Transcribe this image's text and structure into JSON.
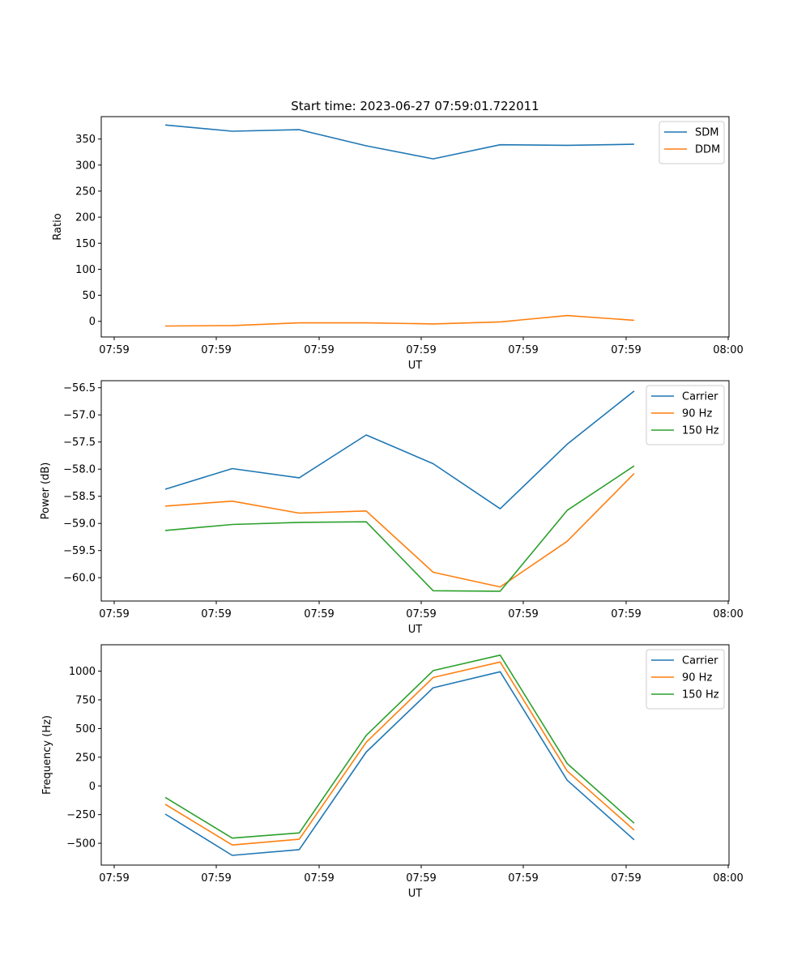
{
  "chart_data": [
    {
      "type": "line",
      "title": "Start time: 2023-06-27 07:59:01.722011",
      "xlabel": "UT",
      "ylabel": "Ratio",
      "x_tick_labels": [
        "07:59",
        "07:59",
        "07:59",
        "07:59",
        "07:59",
        "07:59",
        "07:59"
      ],
      "x_end_tick_label": "08:00",
      "x_sample_index": [
        0,
        1,
        2,
        3,
        4,
        5,
        6,
        7
      ],
      "ylim": [
        -30,
        393
      ],
      "yticks": [
        0,
        50,
        100,
        150,
        200,
        250,
        300,
        350
      ],
      "grid": false,
      "legend_position": "upper right",
      "series": [
        {
          "name": "SDM",
          "color": "#1f77b4",
          "values": [
            377,
            365,
            368,
            337,
            312,
            339,
            338,
            340
          ]
        },
        {
          "name": "DDM",
          "color": "#ff7f0e",
          "values": [
            -9,
            -8,
            -3,
            -3,
            -5,
            -1,
            11,
            2
          ]
        }
      ]
    },
    {
      "type": "line",
      "title": "",
      "xlabel": "UT",
      "ylabel": "Power (dB)",
      "x_tick_labels": [
        "07:59",
        "07:59",
        "07:59",
        "07:59",
        "07:59",
        "07:59",
        "07:59"
      ],
      "x_end_tick_label": "08:00",
      "x_sample_index": [
        0,
        1,
        2,
        3,
        4,
        5,
        6,
        7
      ],
      "ylim": [
        -60.43,
        -56.37
      ],
      "yticks": [
        -60.0,
        -59.5,
        -59.0,
        -58.5,
        -58.0,
        -57.5,
        -57.0,
        -56.5
      ],
      "ytick_labels": [
        "−60.0",
        "−59.5",
        "−59.0",
        "−58.5",
        "−58.0",
        "−57.5",
        "−57.0",
        "−56.5"
      ],
      "grid": false,
      "legend_position": "upper right",
      "series": [
        {
          "name": "Carrier",
          "color": "#1f77b4",
          "values": [
            -58.37,
            -57.99,
            -58.16,
            -57.37,
            -57.9,
            -58.73,
            -57.54,
            -56.56
          ]
        },
        {
          "name": "90 Hz",
          "color": "#ff7f0e",
          "values": [
            -58.68,
            -58.59,
            -58.81,
            -58.77,
            -59.9,
            -60.17,
            -59.33,
            -58.08
          ]
        },
        {
          "name": "150 Hz",
          "color": "#2ca02c",
          "values": [
            -59.13,
            -59.02,
            -58.98,
            -58.97,
            -60.24,
            -60.25,
            -58.76,
            -57.94
          ]
        }
      ]
    },
    {
      "type": "line",
      "title": "",
      "xlabel": "UT",
      "ylabel": "Frequency (Hz)",
      "x_tick_labels": [
        "07:59",
        "07:59",
        "07:59",
        "07:59",
        "07:59",
        "07:59",
        "07:59"
      ],
      "x_end_tick_label": "08:00",
      "x_sample_index": [
        0,
        1,
        2,
        3,
        4,
        5,
        6,
        7
      ],
      "ylim": [
        -690,
        1230
      ],
      "yticks": [
        -500,
        -250,
        0,
        250,
        500,
        750,
        1000
      ],
      "ytick_labels": [
        "−500",
        "−250",
        "0",
        "250",
        "500",
        "750",
        "1000"
      ],
      "grid": false,
      "legend_position": "upper right",
      "series": [
        {
          "name": "Carrier",
          "color": "#1f77b4",
          "values": [
            -245,
            -605,
            -555,
            295,
            855,
            995,
            50,
            -470
          ]
        },
        {
          "name": "90 Hz",
          "color": "#ff7f0e",
          "values": [
            -160,
            -515,
            -465,
            380,
            945,
            1080,
            130,
            -385
          ]
        },
        {
          "name": "150 Hz",
          "color": "#2ca02c",
          "values": [
            -100,
            -455,
            -410,
            440,
            1005,
            1140,
            195,
            -325
          ]
        }
      ]
    }
  ]
}
